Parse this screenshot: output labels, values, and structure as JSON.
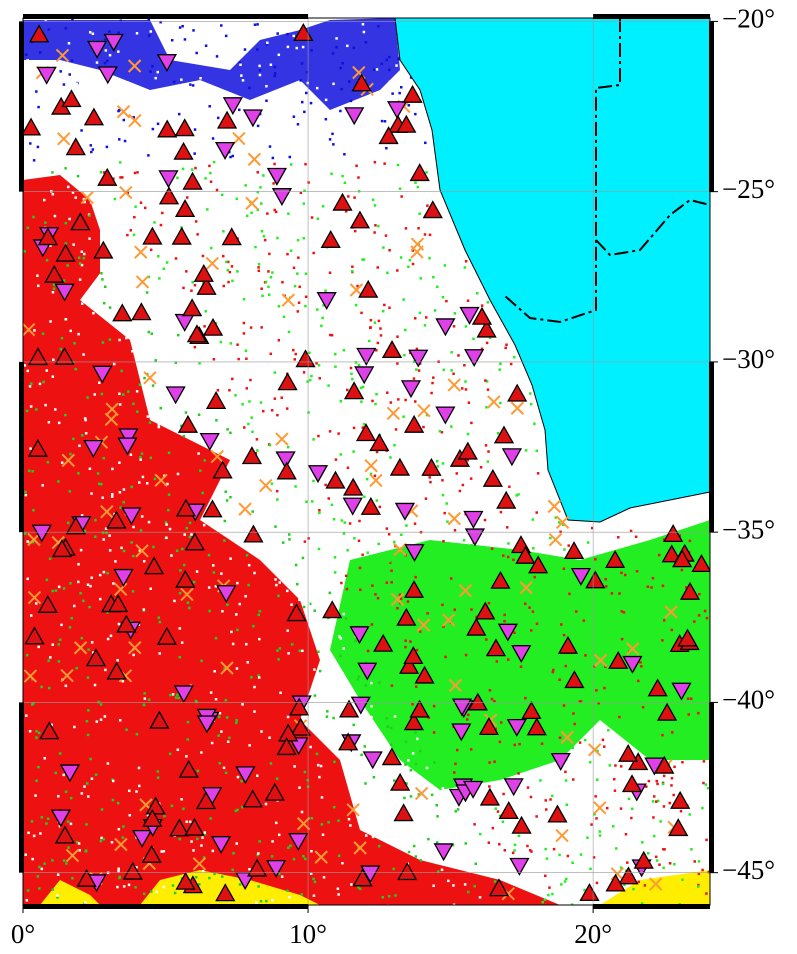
{
  "map": {
    "lon_range": [
      0,
      24.1
    ],
    "lat_range": [
      -19.9,
      -45.95
    ],
    "x_ticks": [
      {
        "value": 0,
        "label": "0°"
      },
      {
        "value": 10,
        "label": "10°"
      },
      {
        "value": 20,
        "label": "20°"
      }
    ],
    "y_ticks": [
      {
        "value": -20,
        "label": "−20°"
      },
      {
        "value": -25,
        "label": "−25°"
      },
      {
        "value": -30,
        "label": "−30°"
      },
      {
        "value": -35,
        "label": "−35°"
      },
      {
        "value": -40,
        "label": "−40°"
      },
      {
        "value": -45,
        "label": "−45°"
      }
    ]
  }
}
